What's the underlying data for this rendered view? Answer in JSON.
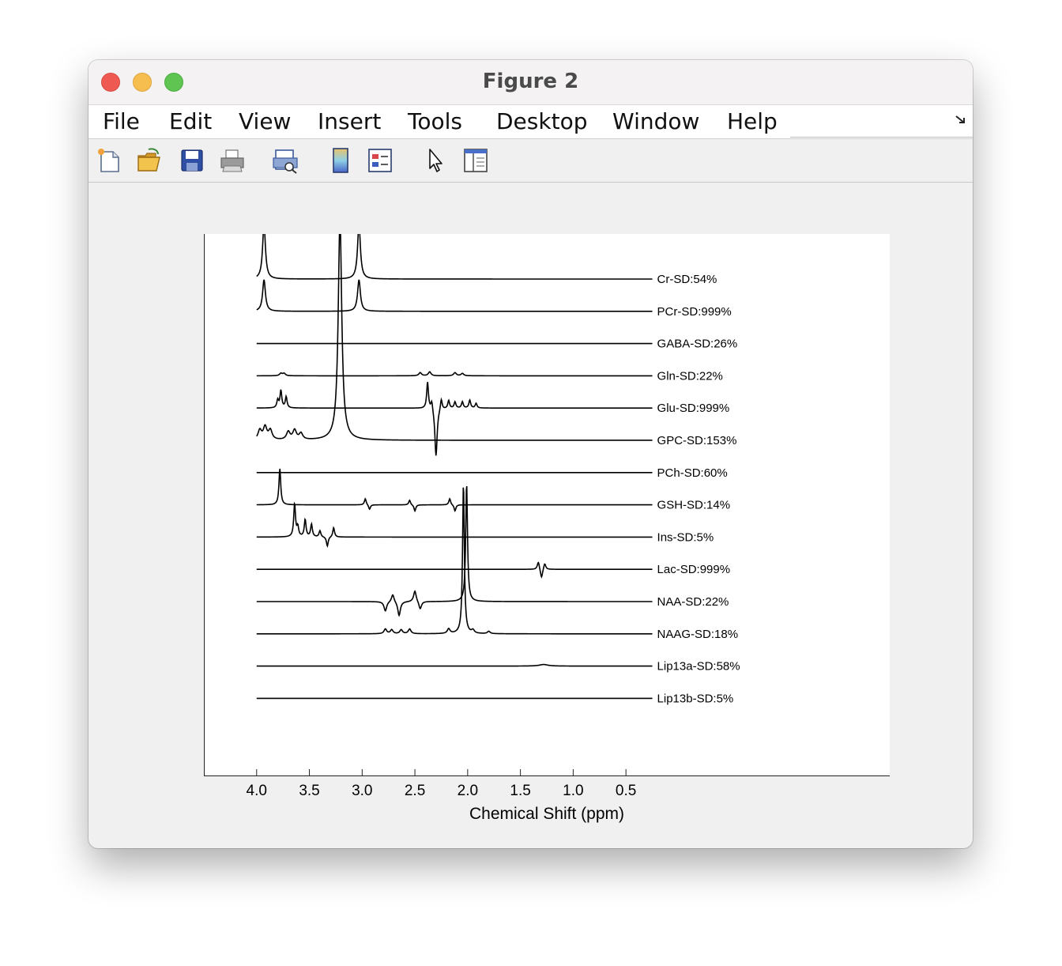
{
  "window": {
    "title": "Figure 2"
  },
  "menu": [
    "File",
    "Edit",
    "View",
    "Insert",
    "Tools",
    "Desktop",
    "Window",
    "Help"
  ],
  "toolbar": [
    "new-figure-icon",
    "open-file-icon",
    "save-icon",
    "print-icon",
    "print-preview-icon",
    "colorbar-icon",
    "legend-icon",
    "pointer-icon",
    "property-inspector-icon"
  ],
  "chart_data": {
    "type": "line",
    "xlabel": "Chemical Shift (ppm)",
    "x_ticks": [
      4.0,
      3.5,
      3.0,
      2.5,
      2.0,
      1.5,
      1.0,
      0.5
    ],
    "x_tick_labels": [
      "4.0",
      "3.5",
      "3.0",
      "2.5",
      "2.0",
      "1.5",
      "1.0",
      "0.5"
    ],
    "xlim": [
      4.5,
      -2.0
    ],
    "x_reversed": true,
    "x_range": [
      4.0,
      0.25
    ],
    "series": [
      {
        "name": "Cr-SD:54%",
        "peaks": [
          [
            3.93,
            70,
            0.016
          ],
          [
            3.03,
            70,
            0.016
          ]
        ]
      },
      {
        "name": "PCr-SD:999%",
        "peaks": [
          [
            3.93,
            40,
            0.016
          ],
          [
            3.03,
            40,
            0.016
          ]
        ]
      },
      {
        "name": "GABA-SD:26%",
        "peaks": []
      },
      {
        "name": "Gln-SD:22%",
        "peaks": [
          [
            3.77,
            3,
            0.015
          ],
          [
            3.74,
            3,
            0.015
          ],
          [
            2.45,
            4,
            0.015
          ],
          [
            2.36,
            5,
            0.015
          ],
          [
            2.12,
            4,
            0.015
          ],
          [
            2.05,
            3,
            0.015
          ]
        ]
      },
      {
        "name": "Glu-SD:999%",
        "peaks": [
          [
            3.77,
            22,
            0.01
          ],
          [
            3.72,
            14,
            0.01
          ],
          [
            3.8,
            10,
            0.01
          ],
          [
            2.38,
            34,
            0.01
          ],
          [
            2.34,
            12,
            0.01
          ],
          [
            2.3,
            -62,
            0.013
          ],
          [
            2.25,
            14,
            0.01
          ],
          [
            2.18,
            10,
            0.01
          ],
          [
            2.12,
            8,
            0.01
          ],
          [
            2.05,
            8,
            0.01
          ],
          [
            1.98,
            10,
            0.01
          ],
          [
            1.92,
            6,
            0.01
          ]
        ]
      },
      {
        "name": "GPC-SD:153%",
        "peaks": [
          [
            3.21,
            280,
            0.02
          ],
          [
            3.97,
            12,
            0.02
          ],
          [
            3.92,
            16,
            0.02
          ],
          [
            3.87,
            12,
            0.02
          ],
          [
            3.7,
            10,
            0.02
          ],
          [
            3.64,
            12,
            0.02
          ],
          [
            3.58,
            8,
            0.02
          ]
        ]
      },
      {
        "name": "PCh-SD:60%",
        "peaks": []
      },
      {
        "name": "GSH-SD:14%",
        "peaks": [
          [
            3.78,
            46,
            0.01
          ],
          [
            2.97,
            8,
            0.01
          ],
          [
            2.93,
            -6,
            0.01
          ],
          [
            2.55,
            6,
            0.01
          ],
          [
            2.5,
            -8,
            0.01
          ],
          [
            2.17,
            8,
            0.01
          ],
          [
            2.12,
            -8,
            0.01
          ]
        ]
      },
      {
        "name": "Ins-SD:5%",
        "peaks": [
          [
            3.64,
            42,
            0.01
          ],
          [
            3.61,
            12,
            0.01
          ],
          [
            3.54,
            22,
            0.01
          ],
          [
            3.48,
            16,
            0.01
          ],
          [
            3.4,
            8,
            0.01
          ],
          [
            3.33,
            -12,
            0.01
          ],
          [
            3.27,
            12,
            0.01
          ]
        ]
      },
      {
        "name": "Lac-SD:999%",
        "peaks": [
          [
            1.33,
            10,
            0.012
          ],
          [
            1.3,
            -12,
            0.012
          ],
          [
            1.27,
            8,
            0.012
          ]
        ]
      },
      {
        "name": "NAA-SD:22%",
        "peaks": [
          [
            2.01,
            150,
            0.01
          ],
          [
            2.5,
            14,
            0.015
          ],
          [
            2.65,
            -18,
            0.015
          ],
          [
            2.71,
            10,
            0.015
          ],
          [
            2.78,
            -12,
            0.015
          ],
          [
            2.45,
            -10,
            0.015
          ]
        ]
      },
      {
        "name": "NAAG-SD:18%",
        "peaks": [
          [
            2.04,
            190,
            0.01
          ],
          [
            2.18,
            6,
            0.015
          ],
          [
            2.55,
            6,
            0.015
          ],
          [
            2.63,
            5,
            0.015
          ],
          [
            2.72,
            5,
            0.015
          ],
          [
            2.78,
            6,
            0.015
          ],
          [
            1.95,
            4,
            0.015
          ],
          [
            1.8,
            3,
            0.015
          ]
        ]
      },
      {
        "name": "Lip13a-SD:58%",
        "peaks": [
          [
            1.28,
            2,
            0.05
          ]
        ]
      },
      {
        "name": "Lip13b-SD:5%",
        "peaks": []
      }
    ]
  }
}
